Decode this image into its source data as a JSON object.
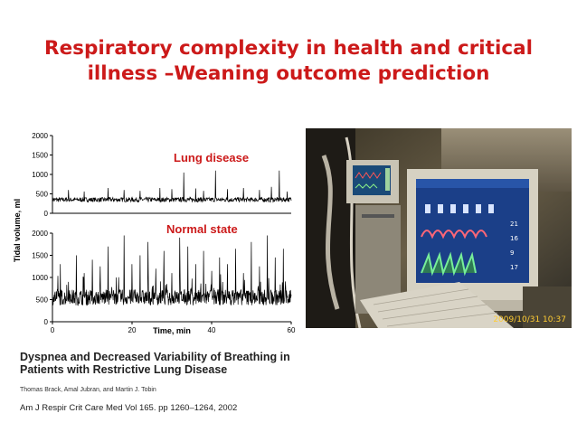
{
  "slide": {
    "title_line1": "Respiratory complexity in health and critical",
    "title_line2": "illness –Weaning outcome prediction"
  },
  "chart_data": [
    {
      "type": "line",
      "annotation": "Lung disease",
      "ylabel": "Tidal volume, ml",
      "ylim": [
        0,
        2000
      ],
      "y_ticks": [
        "2000",
        "1500",
        "1000",
        "500",
        "0"
      ],
      "baseline": 350,
      "noise": 60,
      "spike_times_min": [
        4,
        8,
        14,
        18,
        22,
        27,
        30,
        33,
        36,
        38,
        41,
        44,
        48,
        52,
        55,
        57,
        59
      ],
      "spike_values": [
        600,
        560,
        650,
        600,
        580,
        650,
        620,
        1050,
        640,
        580,
        1100,
        620,
        650,
        600,
        680,
        1100,
        560
      ]
    },
    {
      "type": "line",
      "annotation": "Normal state",
      "xlabel": "Time, min",
      "ylim": [
        0,
        2000
      ],
      "xlim": [
        0,
        60
      ],
      "x_ticks": [
        "0",
        "20",
        "40",
        "60"
      ],
      "y_ticks": [
        "2000",
        "1500",
        "1000",
        "500",
        "0"
      ],
      "baseline": 550,
      "noise": 180,
      "spike_times_min": [
        2,
        4,
        6,
        8,
        10,
        12,
        14,
        16,
        18,
        20,
        22,
        24,
        26,
        28,
        30,
        32,
        34,
        36,
        38,
        40,
        42,
        44,
        46,
        48,
        50,
        52,
        54,
        56,
        58
      ],
      "spike_values": [
        1300,
        900,
        1500,
        1100,
        1400,
        1250,
        1700,
        1000,
        1950,
        1300,
        1500,
        1800,
        1200,
        1600,
        1100,
        1900,
        1700,
        1300,
        1600,
        1150,
        1450,
        1300,
        1650,
        1100,
        1800,
        1250,
        1950,
        1450,
        1650
      ]
    }
  ],
  "photo": {
    "timestamp": "2009/10/31 10:37",
    "monitor_values": [
      "21",
      "16",
      "9",
      "17"
    ]
  },
  "reference": {
    "title_line1": "Dyspnea and Decreased Variability of Breathing in",
    "title_line2": "Patients with Restrictive Lung Disease",
    "authors": "Thomas Brack, Amal Jubran, and Martin J. Tobin",
    "journal": "Am J Respir Crit Care Med   Vol 165. pp 1260–1264, 2002"
  }
}
